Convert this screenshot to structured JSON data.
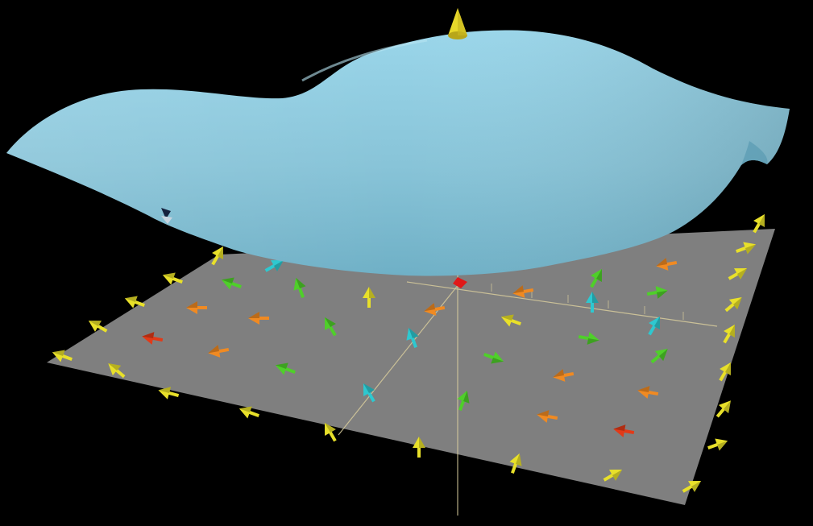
{
  "scene": {
    "background_color": "#000000",
    "plane_color": "#7f7f7f",
    "surface_color": "#8ac6db",
    "axis_color": "#e0d6a8",
    "axis_tip_color": "#e8d82a",
    "origin_marker_color": "#e01818"
  },
  "palette": {
    "y": "#e8e02a",
    "g": "#4fcf2a",
    "c": "#2ec8d0",
    "o": "#f08a22",
    "r": "#e23a18"
  }
}
